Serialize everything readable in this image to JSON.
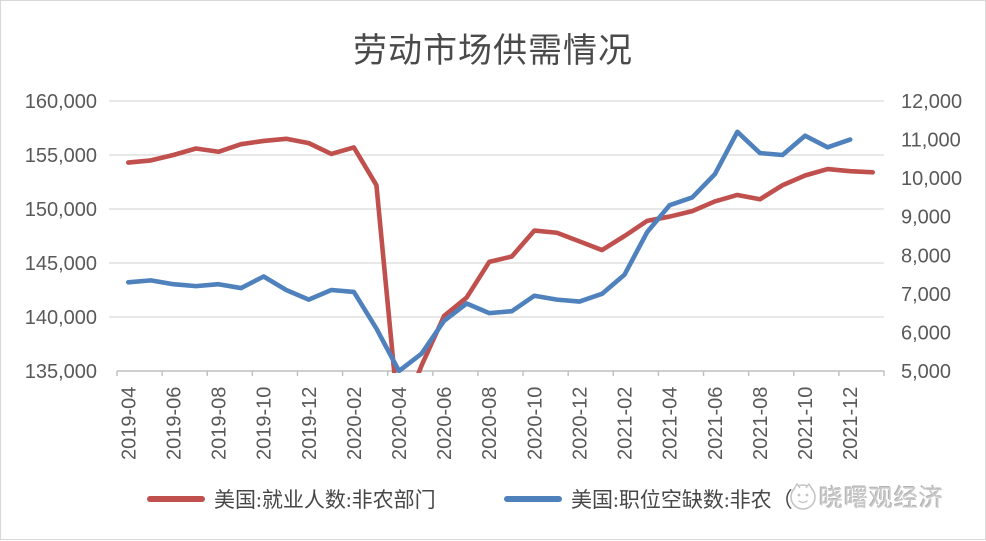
{
  "title": "劳动市场供需情况",
  "watermark": {
    "text": "晓曙观经济"
  },
  "legend": [
    {
      "label": "美国:就业人数:非农部门",
      "color": "#c0504d"
    },
    {
      "label": "美国:职位空缺数:非农（",
      "color": "#4f81bd"
    }
  ],
  "colors": {
    "employment_line": "#c0504d",
    "openings_line": "#4f81bd",
    "gridline": "#d9d9d9",
    "axis_line": "#bfbfbf",
    "tick_text": "#595959"
  },
  "chart_data": {
    "type": "line",
    "title": "劳动市场供需情况",
    "grid": true,
    "legend_position": "bottom",
    "categories": [
      "2019-04",
      "2019-05",
      "2019-06",
      "2019-07",
      "2019-08",
      "2019-09",
      "2019-10",
      "2019-11",
      "2019-12",
      "2020-01",
      "2020-02",
      "2020-03",
      "2020-04",
      "2020-05",
      "2020-06",
      "2020-07",
      "2020-08",
      "2020-09",
      "2020-10",
      "2020-11",
      "2020-12",
      "2021-01",
      "2021-02",
      "2021-03",
      "2021-04",
      "2021-05",
      "2021-06",
      "2021-07",
      "2021-08",
      "2021-09",
      "2021-10",
      "2021-11",
      "2021-12",
      "2022-01"
    ],
    "x_tick_labels": [
      "2019-04",
      "2019-06",
      "2019-08",
      "2019-10",
      "2019-12",
      "2020-02",
      "2020-04",
      "2020-06",
      "2020-08",
      "2020-10",
      "2020-12",
      "2021-02",
      "2021-04",
      "2021-06",
      "2021-08",
      "2021-10",
      "2021-12"
    ],
    "left_axis": {
      "min": 135000,
      "max": 160000,
      "step": 5000,
      "tick_labels": [
        "160,000",
        "155,000",
        "150,000",
        "145,000",
        "140,000",
        "135,000"
      ]
    },
    "right_axis": {
      "min": 5000,
      "max": 12000,
      "step": 1000,
      "tick_labels": [
        "12,000",
        "11,000",
        "10,000",
        "9,000",
        "8,000",
        "7,000",
        "6,000",
        "5,000"
      ]
    },
    "series": [
      {
        "name": "美国:就业人数:非农部门",
        "axis": "left",
        "color": "#c0504d",
        "values": [
          154300,
          154500,
          155000,
          155600,
          155300,
          156000,
          156300,
          156500,
          156100,
          155100,
          155700,
          152200,
          130300,
          135500,
          140100,
          141800,
          145100,
          145600,
          148000,
          147800,
          147000,
          146200,
          147500,
          148900,
          149300,
          149800,
          150700,
          151300,
          150900,
          152200,
          153100,
          153700,
          153500,
          153400
        ]
      },
      {
        "name": "美国:职位空缺数:非农",
        "axis": "right",
        "color": "#4f81bd",
        "values": [
          7300,
          7350,
          7250,
          7200,
          7250,
          7150,
          7450,
          7100,
          6850,
          7100,
          7050,
          6100,
          5000,
          5450,
          6300,
          6750,
          6500,
          6550,
          6950,
          6850,
          6800,
          7000,
          7500,
          8600,
          9300,
          9500,
          10100,
          11200,
          10650,
          10600,
          11100,
          10800,
          11000
        ]
      }
    ]
  }
}
